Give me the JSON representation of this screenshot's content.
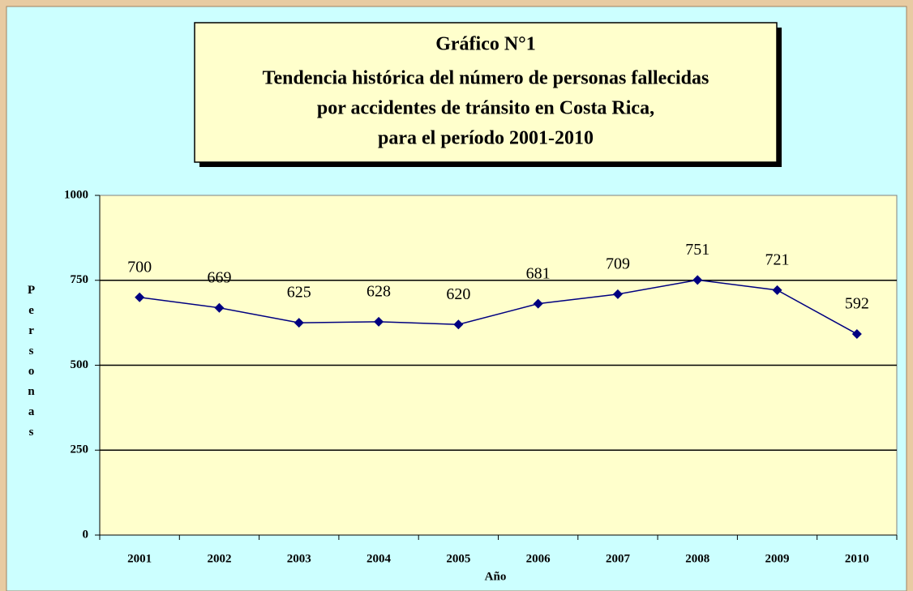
{
  "chart_data": {
    "type": "line",
    "title": [
      "Gráfico N°1",
      "Tendencia histórica del número de personas fallecidas",
      "por accidentes de tránsito en Costa Rica,",
      "para el período 2001-2010"
    ],
    "x_label": "Año",
    "y_label": "Personas",
    "categories": [
      "2001",
      "2002",
      "2003",
      "2004",
      "2005",
      "2006",
      "2007",
      "2008",
      "2009",
      "2010"
    ],
    "series": [
      {
        "name": "Personas",
        "color": "#000080",
        "values": [
          700,
          669,
          625,
          628,
          620,
          681,
          709,
          751,
          721,
          592
        ]
      }
    ],
    "ylim": [
      0,
      1000
    ],
    "yticks": [
      0,
      250,
      500,
      750,
      1000
    ],
    "grid": true
  }
}
